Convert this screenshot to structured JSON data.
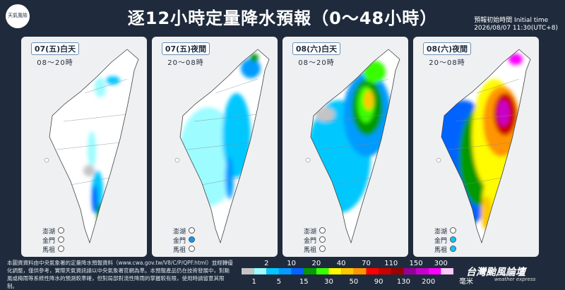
{
  "logo": "天氣風險",
  "title": "逐12小時定量降水預報（0～48小時）",
  "initial_time": {
    "label": "預報初始時間 Initial time",
    "value": "2026/08/07 11:30(UTC+8)"
  },
  "panels": [
    {
      "date": "07(五)白天",
      "hours": "08～20時"
    },
    {
      "date": "07(五)夜間",
      "hours": "20～08時"
    },
    {
      "date": "08(六)白天",
      "hours": "08～20時"
    },
    {
      "date": "08(六)夜間",
      "hours": "20～08時"
    }
  ],
  "islands": [
    "澎湖",
    "金門",
    "馬祖"
  ],
  "legend": {
    "upper": [
      2,
      10,
      20,
      40,
      70,
      110,
      150,
      300
    ],
    "lower": [
      1,
      5,
      15,
      30,
      50,
      90,
      130,
      200
    ],
    "unit": "毫米",
    "colors": [
      "#c4c4c4",
      "#9cfcff",
      "#03c8ff",
      "#059bff",
      "#0363ff",
      "#059902",
      "#39ff03",
      "#fffb03",
      "#ffc800",
      "#ff9500",
      "#ff0000",
      "#cc0000",
      "#990000",
      "#960099",
      "#c900cc",
      "#fb00ff",
      "#fdc9ff"
    ]
  },
  "footer": "本圖資資料由中央氣象署的定量降水預報資料（www.cwa.gov.tw/V8/C/P/QPF.html）並經轉優化調整，僅供參考，實際天氣資訊請以中央氣象署官網為準。本預報產品仍在技術發展中，對颱風或梅雨等系統性降水的預測較準確，但對局部對流性降雨的掌握較有限，使用時請留意其限制。",
  "brand": {
    "name": "台灣颱風論壇",
    "tagline": "weather express"
  }
}
